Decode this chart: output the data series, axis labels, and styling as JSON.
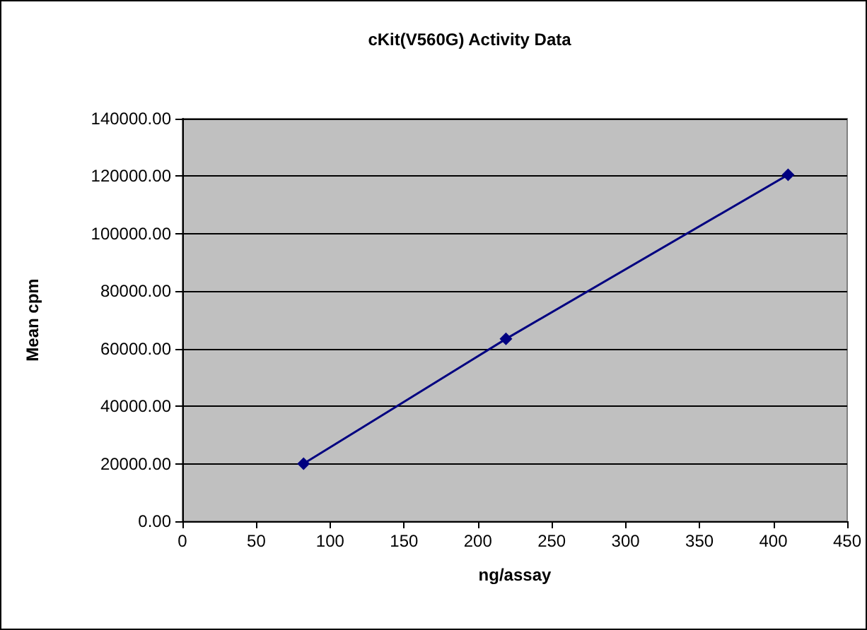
{
  "chart_data": {
    "type": "line",
    "title": "cKit(V560G) Activity Data",
    "xlabel": "ng/assay",
    "ylabel": "Mean cpm",
    "x": [
      82,
      219,
      410
    ],
    "series": [
      {
        "color": "#000080",
        "values": [
          20000,
          63400,
          120500
        ]
      }
    ],
    "xlim": [
      0,
      450
    ],
    "xticks": [
      0,
      50,
      100,
      150,
      200,
      250,
      300,
      350,
      400,
      450
    ],
    "ylim": [
      0,
      140000
    ],
    "yticks": [
      {
        "value": 0,
        "label": "0.00"
      },
      {
        "value": 20000,
        "label": "20000.00"
      },
      {
        "value": 40000,
        "label": "40000.00"
      },
      {
        "value": 60000,
        "label": "60000.00"
      },
      {
        "value": 80000,
        "label": "80000.00"
      },
      {
        "value": 100000,
        "label": "100000.00"
      },
      {
        "value": 120000,
        "label": "120000.00"
      },
      {
        "value": 140000,
        "label": "140000.00"
      }
    ],
    "grid": "y",
    "marker": "diamond",
    "line_style": "solid"
  }
}
